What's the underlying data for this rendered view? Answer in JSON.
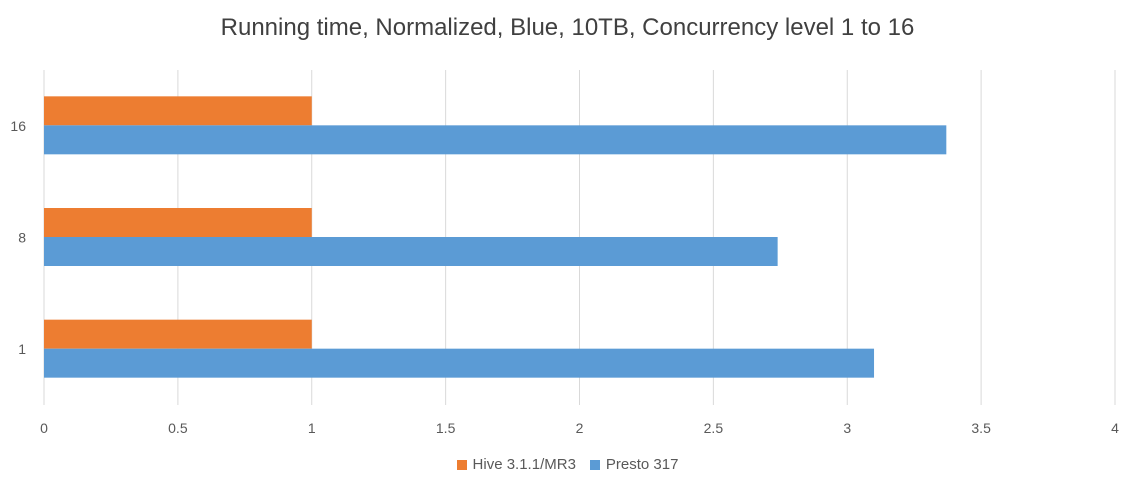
{
  "chart_data": {
    "type": "bar",
    "orientation": "horizontal",
    "title": "Running time, Normalized, Blue, 10TB, Concurrency level 1 to 16",
    "categories": [
      "1",
      "8",
      "16"
    ],
    "series": [
      {
        "name": "Hive 3.1.1/MR3",
        "color": "#ed7d31",
        "values": [
          1,
          1,
          1
        ]
      },
      {
        "name": "Presto 317",
        "color": "#5b9bd5",
        "values": [
          3.1,
          2.74,
          3.37
        ]
      }
    ],
    "xlim": [
      0,
      4
    ],
    "xticks": [
      "0",
      "0.5",
      "1",
      "1.5",
      "2",
      "2.5",
      "3",
      "3.5",
      "4"
    ],
    "grid": true,
    "legend_position": "bottom"
  }
}
